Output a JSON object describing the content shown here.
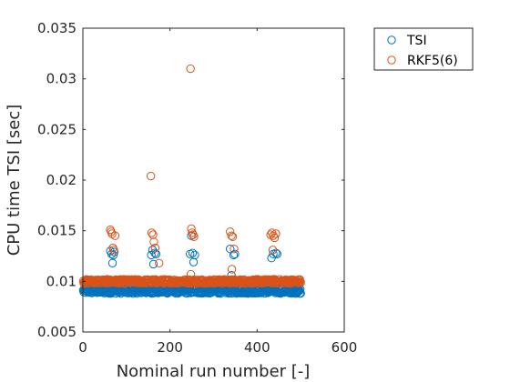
{
  "chart_data": {
    "type": "scatter",
    "xlabel": "Nominal run number [-]",
    "ylabel": "CPU time TSI [sec]",
    "xlim": [
      0,
      600
    ],
    "ylim": [
      0.005,
      0.035
    ],
    "xticks": [
      0,
      200,
      400,
      600
    ],
    "yticks": [
      0.005,
      0.01,
      0.015,
      0.02,
      0.025,
      0.03,
      0.035
    ],
    "xtick_labels": [
      "0",
      "200",
      "400",
      "600"
    ],
    "ytick_labels": [
      "0.005",
      "0.01",
      "0.015",
      "0.02",
      "0.025",
      "0.03",
      "0.035"
    ],
    "grid": false,
    "legend_position": "outside-top-right",
    "marker": "open-circle",
    "series": [
      {
        "name": "TSI",
        "color": "#0072BD",
        "baseline": {
          "x_start": 1,
          "x_end": 500,
          "y_min": 0.0088,
          "y_max": 0.0093
        },
        "points": [
          [
            63,
            0.013
          ],
          [
            66,
            0.0127
          ],
          [
            68,
            0.0118
          ],
          [
            70,
            0.0126
          ],
          [
            72,
            0.0129
          ],
          [
            157,
            0.0126
          ],
          [
            160,
            0.0131
          ],
          [
            162,
            0.0117
          ],
          [
            165,
            0.0128
          ],
          [
            168,
            0.0127
          ],
          [
            246,
            0.0127
          ],
          [
            249,
            0.0145
          ],
          [
            252,
            0.0128
          ],
          [
            254,
            0.0119
          ],
          [
            257,
            0.0126
          ],
          [
            338,
            0.0132
          ],
          [
            341,
            0.0106
          ],
          [
            343,
            0.0099
          ],
          [
            346,
            0.0126
          ],
          [
            349,
            0.0127
          ],
          [
            433,
            0.0123
          ],
          [
            437,
            0.0127
          ],
          [
            440,
            0.0102
          ],
          [
            443,
            0.0128
          ],
          [
            446,
            0.0127
          ]
        ]
      },
      {
        "name": "RKF5(6)",
        "color": "#D95319",
        "baseline": {
          "x_start": 1,
          "x_end": 500,
          "y_min": 0.0098,
          "y_max": 0.0102
        },
        "points": [
          [
            63,
            0.0151
          ],
          [
            65,
            0.0149
          ],
          [
            67,
            0.0147
          ],
          [
            69,
            0.0133
          ],
          [
            71,
            0.0131
          ],
          [
            74,
            0.0145
          ],
          [
            156,
            0.0204
          ],
          [
            158,
            0.0148
          ],
          [
            161,
            0.0146
          ],
          [
            163,
            0.0139
          ],
          [
            166,
            0.0133
          ],
          [
            175,
            0.0118
          ],
          [
            247,
            0.031
          ],
          [
            249,
            0.0152
          ],
          [
            251,
            0.0148
          ],
          [
            253,
            0.0146
          ],
          [
            255,
            0.0144
          ],
          [
            248,
            0.0107
          ],
          [
            338,
            0.0149
          ],
          [
            341,
            0.0145
          ],
          [
            344,
            0.0144
          ],
          [
            342,
            0.0112
          ],
          [
            347,
            0.0132
          ],
          [
            431,
            0.0146
          ],
          [
            434,
            0.0148
          ],
          [
            437,
            0.0145
          ],
          [
            440,
            0.0143
          ],
          [
            443,
            0.0147
          ],
          [
            436,
            0.0131
          ]
        ]
      }
    ]
  }
}
